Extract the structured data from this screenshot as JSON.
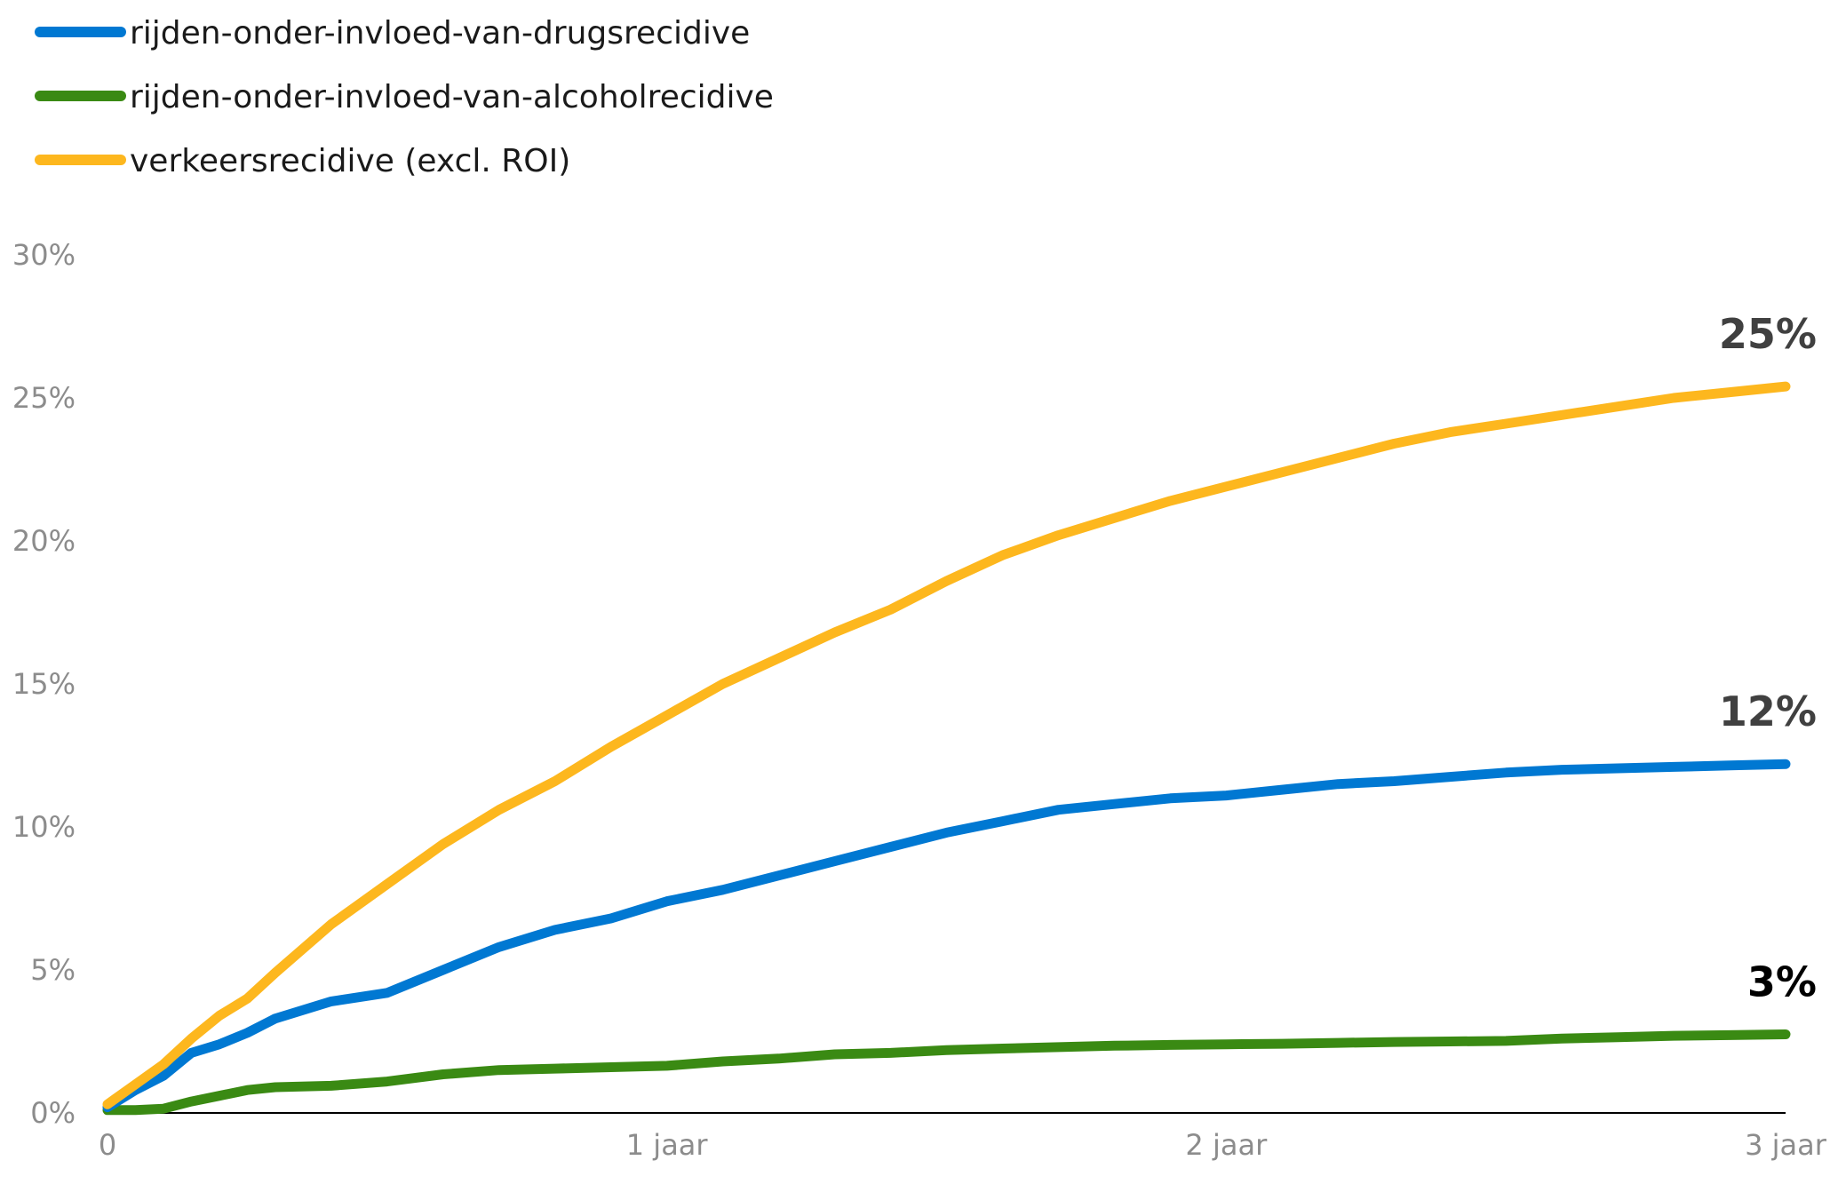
{
  "chart_data": {
    "type": "line",
    "title": "",
    "xlabel": "",
    "ylabel": "",
    "x_ticks": [
      "0",
      "1 jaar",
      "2 jaar",
      "3 jaar"
    ],
    "xlim": [
      0,
      3
    ],
    "y_ticks": [
      "0%",
      "5%",
      "10%",
      "15%",
      "20%",
      "25%",
      "30%"
    ],
    "ylim": [
      0,
      30
    ],
    "grid": false,
    "legend_position": "top-left",
    "x": [
      0,
      0.05,
      0.1,
      0.15,
      0.2,
      0.25,
      0.3,
      0.4,
      0.5,
      0.6,
      0.7,
      0.8,
      0.9,
      1.0,
      1.1,
      1.2,
      1.3,
      1.4,
      1.5,
      1.6,
      1.7,
      1.8,
      1.9,
      2.0,
      2.1,
      2.2,
      2.3,
      2.4,
      2.5,
      2.6,
      2.7,
      2.8,
      2.9,
      3.0
    ],
    "series": [
      {
        "name": "rijden-onder-invloed-van-drugsrecidive",
        "color": "#0078d2",
        "values": [
          0.2,
          0.8,
          1.3,
          2.1,
          2.4,
          2.8,
          3.3,
          3.9,
          4.2,
          5.0,
          5.8,
          6.4,
          6.8,
          7.4,
          7.8,
          8.3,
          8.8,
          9.3,
          9.8,
          10.2,
          10.6,
          10.8,
          11.0,
          11.1,
          11.3,
          11.5,
          11.6,
          11.75,
          11.9,
          12.0,
          12.05,
          12.1,
          12.15,
          12.2
        ],
        "end_label": "12%",
        "end_label_color": "#404040"
      },
      {
        "name": "rijden-onder-invloed-van-alcoholrecidive",
        "color": "#3a8a13",
        "values": [
          0.1,
          0.1,
          0.15,
          0.4,
          0.6,
          0.8,
          0.9,
          0.95,
          1.1,
          1.35,
          1.5,
          1.55,
          1.6,
          1.65,
          1.8,
          1.9,
          2.05,
          2.1,
          2.2,
          2.25,
          2.3,
          2.35,
          2.38,
          2.4,
          2.42,
          2.45,
          2.48,
          2.5,
          2.52,
          2.6,
          2.65,
          2.7,
          2.72,
          2.75
        ],
        "end_label": "3%",
        "end_label_color": "#000000"
      },
      {
        "name": "verkeersrecidive (excl. ROI)",
        "color": "#fdb71e",
        "values": [
          0.3,
          1.0,
          1.7,
          2.6,
          3.4,
          4.0,
          4.9,
          6.6,
          8.0,
          9.4,
          10.6,
          11.6,
          12.8,
          13.9,
          15.0,
          15.9,
          16.8,
          17.6,
          18.6,
          19.5,
          20.2,
          20.8,
          21.4,
          21.9,
          22.4,
          22.9,
          23.4,
          23.8,
          24.1,
          24.4,
          24.7,
          25.0,
          25.2,
          25.4
        ],
        "end_label": "25%",
        "end_label_color": "#404040"
      }
    ]
  }
}
